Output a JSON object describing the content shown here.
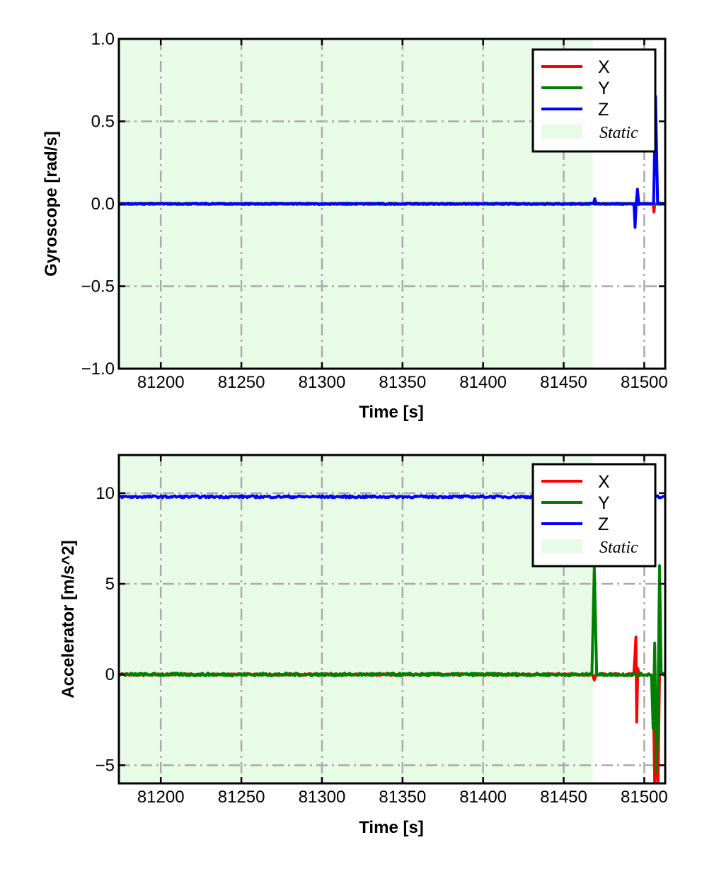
{
  "chart_data": [
    {
      "type": "line",
      "xlabel": "Time [s]",
      "ylabel": "Gyroscope [rad/s]",
      "xlim": [
        81174,
        81513
      ],
      "ylim": [
        -1.0,
        1.0
      ],
      "xticks": [
        81200,
        81250,
        81300,
        81350,
        81400,
        81450,
        81500
      ],
      "xtick_labels": [
        "81200",
        "81250",
        "81300",
        "81350",
        "81400",
        "81450",
        "81500"
      ],
      "yticks": [
        1.0,
        0.5,
        0.0,
        -0.5,
        -1.0
      ],
      "ytick_labels": [
        "1.0",
        "0.5",
        "0.0",
        "−0.5",
        "−1.0"
      ],
      "grid": true,
      "legend_position": "top-right",
      "static_region": {
        "label": "Static",
        "x": [
          81174,
          81468
        ],
        "color": "#e8fbe6"
      },
      "series": [
        {
          "name": "X",
          "color": "#ff0000",
          "baseline": 0.0,
          "noise": 0.004,
          "points": [
            [
              81174,
              0
            ],
            [
              81505.5,
              0
            ],
            [
              81506,
              -0.05
            ],
            [
              81506.5,
              0
            ],
            [
              81513,
              0
            ]
          ]
        },
        {
          "name": "Y",
          "color": "#008000",
          "baseline": 0.0,
          "noise": 0.004,
          "points": [
            [
              81174,
              0
            ],
            [
              81513,
              0
            ]
          ]
        },
        {
          "name": "Z",
          "color": "#0000ff",
          "baseline": 0.0,
          "noise": 0.004,
          "points": [
            [
              81174,
              0
            ],
            [
              81468.5,
              0
            ],
            [
              81469.3,
              0.03
            ],
            [
              81470.1,
              0
            ],
            [
              81493.6,
              0
            ],
            [
              81494.3,
              -0.14
            ],
            [
              81495,
              0
            ],
            [
              81495.8,
              0.09
            ],
            [
              81496.6,
              0
            ],
            [
              81505.8,
              0
            ],
            [
              81507,
              0.65
            ],
            [
              81508.3,
              0
            ],
            [
              81513,
              0
            ]
          ]
        }
      ]
    },
    {
      "type": "line",
      "xlabel": "Time [s]",
      "ylabel": "Accelerator [m/s^2]",
      "xlim": [
        81174,
        81513
      ],
      "ylim": [
        -6.0,
        12.1
      ],
      "xticks": [
        81200,
        81250,
        81300,
        81350,
        81400,
        81450,
        81500
      ],
      "xtick_labels": [
        "81200",
        "81250",
        "81300",
        "81350",
        "81400",
        "81450",
        "81500"
      ],
      "yticks": [
        10,
        5,
        0,
        -5
      ],
      "ytick_labels": [
        "10",
        "5",
        "0",
        "−5"
      ],
      "grid": true,
      "legend_position": "top-right",
      "static_region": {
        "label": "Static",
        "x": [
          81174,
          81468
        ],
        "color": "#e8fbe6"
      },
      "series": [
        {
          "name": "X",
          "color": "#ff0000",
          "baseline": 0.0,
          "noise": 0.05,
          "points": [
            [
              81174,
              0
            ],
            [
              81468,
              0
            ],
            [
              81469,
              -0.3
            ],
            [
              81470,
              0
            ],
            [
              81493.5,
              0
            ],
            [
              81494.2,
              1.0
            ],
            [
              81494.8,
              2.1
            ],
            [
              81495.3,
              -2.6
            ],
            [
              81496,
              0.3
            ],
            [
              81497,
              0
            ],
            [
              81504.5,
              0
            ],
            [
              81505.5,
              -1.0
            ],
            [
              81506.5,
              -6.0
            ],
            [
              81507.5,
              -4.0
            ],
            [
              81508.5,
              -6.0
            ],
            [
              81509.5,
              0
            ],
            [
              81513,
              0
            ]
          ]
        },
        {
          "name": "Y",
          "color": "#008000",
          "baseline": 0.0,
          "noise": 0.08,
          "points": [
            [
              81174,
              0
            ],
            [
              81467.5,
              0
            ],
            [
              81469,
              6.0
            ],
            [
              81470.5,
              0
            ],
            [
              81504.5,
              0
            ],
            [
              81505.5,
              -3.0
            ],
            [
              81506.5,
              1.8
            ],
            [
              81507.5,
              -5.3
            ],
            [
              81508.5,
              -2.0
            ],
            [
              81509.5,
              6.0
            ],
            [
              81510.5,
              0
            ],
            [
              81513,
              0
            ]
          ]
        },
        {
          "name": "Z",
          "color": "#0000ff",
          "baseline": 9.8,
          "noise": 0.06,
          "points": [
            [
              81174,
              9.8
            ],
            [
              81513,
              9.8
            ]
          ]
        }
      ]
    }
  ]
}
